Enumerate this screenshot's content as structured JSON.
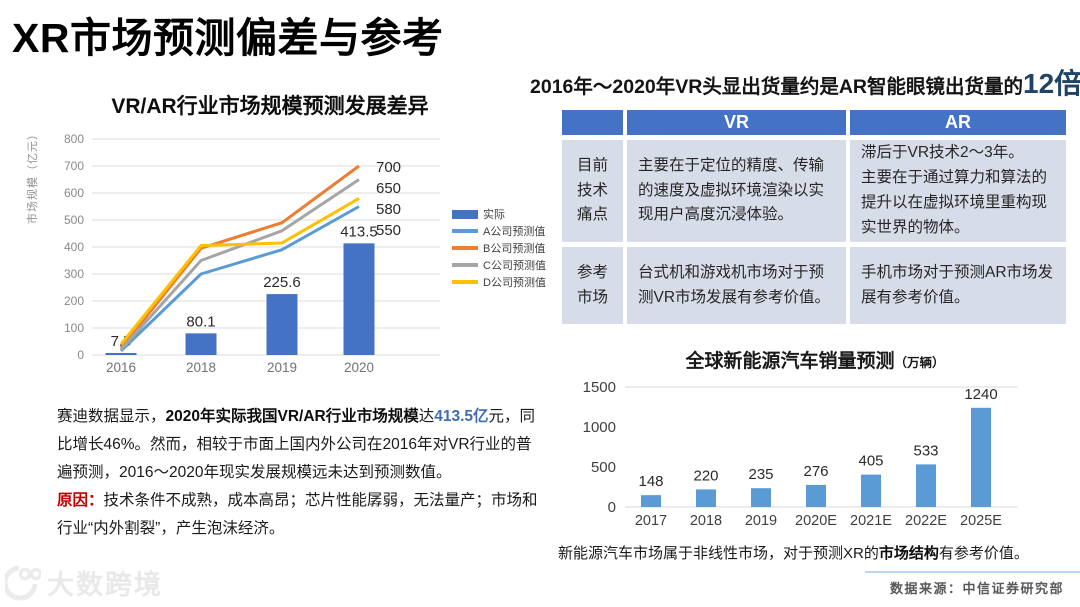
{
  "slide": {
    "title": "XR市场预测偏差与参考",
    "source_note": "数据来源：中信证券研究部",
    "watermark": "大数跨境"
  },
  "headline": {
    "prefix": "2016年～2020年VR头显出货量约是AR智能眼镜出货量的",
    "highlight": "12倍",
    "highlight_color": "#1F4466"
  },
  "comparison_table": {
    "columns": [
      "",
      "VR",
      "AR"
    ],
    "header_bg": "#4472C4",
    "body_bg": "#D6DCE8",
    "rows": [
      {
        "label": "目前\n技术\n痛点",
        "vr": "主要在于定位的精度、传输的速度及虚拟环境渲染以实现用户高度沉浸体验。",
        "ar": "滞后于VR技术2～3年。\n主要在于通过算力和算法的提升以在虚拟环境里重构现实世界的物体。"
      },
      {
        "label": "参考\n市场",
        "vr": "台式机和游戏机市场对于预测VR市场发展有参考价值。",
        "ar": "手机市场对于预测AR市场发展有参考价值。"
      }
    ]
  },
  "analysis": {
    "main_segments": [
      {
        "text": "赛迪数据显示，",
        "style": "normal"
      },
      {
        "text": "2020年实际我国VR/AR行业市场规模",
        "style": "bold"
      },
      {
        "text": "达",
        "style": "normal"
      },
      {
        "text": "413.5亿",
        "style": "blue-bold"
      },
      {
        "text": "元，同比增长46%。然而，相较于市面上国内外公司在2016年对VR行业的普遍预测，2016～2020年现实发展规模远未达到预测数值。",
        "style": "normal"
      }
    ],
    "reason_segments": [
      {
        "text": "原因：",
        "style": "red-bold"
      },
      {
        "text": "技术条件不成熟，成本高昂；芯片性能孱弱，无法量产；市场和行业“内外割裂”，产生泡沫经济。",
        "style": "normal"
      }
    ]
  },
  "nev_note_segments": [
    {
      "text": "新能源汽车市场属于非线性市场，对于预测XR的",
      "style": "normal"
    },
    {
      "text": "市场结构",
      "style": "bold"
    },
    {
      "text": "有参考价值。",
      "style": "normal"
    }
  ],
  "chart_data": [
    {
      "id": "vr-ar-market-forecast",
      "type": "combo",
      "title": "VR/AR行业市场规模预测发展差异",
      "ylabel": "市场规模（亿元）",
      "ylim": [
        0,
        800
      ],
      "ytick_step": 100,
      "grid": true,
      "legend_position": "right",
      "categories": [
        "2016",
        "2018",
        "2019",
        "2020"
      ],
      "series": [
        {
          "name": "实际",
          "type": "bar",
          "color": "#4472C4",
          "values": [
            7.5,
            80.1,
            225.6,
            413.5
          ],
          "data_labels": [
            "7.5",
            "80.1",
            "225.6",
            "413.5"
          ]
        },
        {
          "name": "A公司预测值",
          "type": "line",
          "color": "#5B9BD5",
          "values": [
            15,
            300,
            390,
            550
          ],
          "end_label": "550"
        },
        {
          "name": "B公司预测值",
          "type": "line",
          "color": "#ED7D31",
          "values": [
            25,
            395,
            490,
            700
          ],
          "end_label": "700"
        },
        {
          "name": "C公司预测值",
          "type": "line",
          "color": "#A5A5A5",
          "values": [
            20,
            350,
            460,
            650
          ],
          "end_label": "650"
        },
        {
          "name": "D公司预测值",
          "type": "line",
          "color": "#FFC000",
          "values": [
            40,
            405,
            415,
            580
          ],
          "end_label": "580"
        }
      ]
    },
    {
      "id": "nev-sales-forecast",
      "type": "bar",
      "title": "全球新能源汽车销量预测（万辆）",
      "title_main": "全球新能源汽车销量预测",
      "title_unit": "（万辆）",
      "ylim": [
        0,
        1500
      ],
      "yticks": [
        0,
        500,
        1000,
        1500
      ],
      "grid": false,
      "color": "#5B9BD5",
      "categories": [
        "2017",
        "2018",
        "2019",
        "2020E",
        "2021E",
        "2022E",
        "2025E"
      ],
      "values": [
        148,
        220,
        235,
        276,
        405,
        533,
        1240
      ]
    }
  ]
}
